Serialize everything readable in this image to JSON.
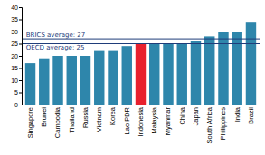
{
  "chart_data": {
    "type": "bar",
    "categories": [
      "Singapore",
      "Brunei",
      "Cambodia",
      "Thailand",
      "Russia",
      "Vietnam",
      "Korea",
      "Lao PDR",
      "Indonesia",
      "Malaysia",
      "Myanmar",
      "China",
      "Japan",
      "South Africa",
      "Philippines",
      "India",
      "Brazil"
    ],
    "values": [
      17,
      19,
      20,
      20,
      20,
      22,
      22,
      24,
      25,
      25,
      25,
      25,
      26,
      28,
      30,
      30,
      34
    ],
    "colors": [
      "#2e86ab",
      "#2e86ab",
      "#2e86ab",
      "#2e86ab",
      "#2e86ab",
      "#2e86ab",
      "#2e86ab",
      "#2e86ab",
      "#e8212e",
      "#2e86ab",
      "#2e86ab",
      "#2e86ab",
      "#2e86ab",
      "#2e86ab",
      "#2e86ab",
      "#2e86ab",
      "#2e86ab"
    ],
    "annotations": [
      {
        "label": "BRICS average: 27",
        "value": 27,
        "color": "#1f3d7a"
      },
      {
        "label": "OECD average: 25",
        "value": 25,
        "color": "#1f3d7a"
      }
    ],
    "ylim": [
      0,
      40
    ],
    "yticks": [
      0,
      5,
      10,
      15,
      20,
      25,
      30,
      35,
      40
    ],
    "grid": false
  }
}
